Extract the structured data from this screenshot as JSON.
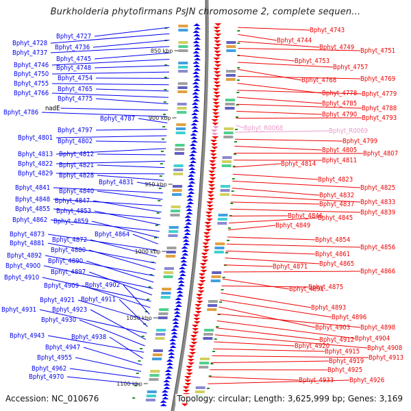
{
  "title": "Burkholderia phytofirmans PsJN chromosome 2, complete sequen...",
  "footer": {
    "accession": "Accession: NC_010676",
    "topology": "Topology: circular; Length: 3,625,999 bp; Genes: 3,169"
  },
  "colors": {
    "forward": "#0000ee",
    "reverse": "#ee0000",
    "rna": "#ee99cc",
    "backbone": "#888888",
    "tick": "#228b22"
  },
  "scale_labels": [
    "850 kbp",
    "900 kbp",
    "950 kbp",
    "1000 kbp",
    "1050 kbp",
    "1100 kbp"
  ],
  "left_labels": [
    "Bphyt_4727",
    "Bphyt_4728",
    "Bphyt_4736",
    "Bphyt_4737",
    "Bphyt_4745",
    "Bphyt_4746",
    "Bphyt_4748",
    "Bphyt_4750",
    "Bphyt_4754",
    "Bphyt_4755",
    "Bphyt_4765",
    "Bphyt_4766",
    "Bphyt_4775",
    "nadE",
    "Bphyt_4786",
    "Bphyt_4787",
    "Bphyt_4797",
    "Bphyt_4801",
    "Bphyt_4802",
    "Bphyt_4813",
    "Bphyt_4812",
    "Bphyt_4822",
    "Bphyt_4821",
    "Bphyt_4829",
    "Bphyt_4828",
    "Bphyt_4831",
    "Bphyt_4841",
    "Bphyt_4840",
    "Bphyt_4848",
    "Bphyt_4847",
    "Bphyt_4855",
    "Bphyt_4853",
    "Bphyt_4862",
    "Bphyt_4859",
    "Bphyt_4864",
    "Bphyt_4873",
    "Bphyt_4872",
    "Bphyt_4881",
    "Bphyt_4880",
    "Bphyt_4892",
    "Bphyt_4890",
    "Bphyt_4900",
    "Bphyt_4897",
    "Bphyt_4910",
    "Bphyt_4909",
    "Bphyt_4902",
    "Bphyt_4921",
    "Bphyt_4911",
    "Bphyt_4931",
    "Bphyt_4923",
    "Bphyt_4930",
    "Bphyt_4943",
    "Bphyt_4938",
    "Bphyt_4947",
    "Bphyt_4955",
    "Bphyt_4962",
    "Bphyt_4970"
  ],
  "right_labels": [
    "Bphyt_4743",
    "Bphyt_4744",
    "Bphyt_4749",
    "Bphyt_4751",
    "Bphyt_4753",
    "Bphyt_4757",
    "Bphyt_4768",
    "Bphyt_4769",
    "Bphyt_4778",
    "Bphyt_4779",
    "Bphyt_4785",
    "Bphyt_4788",
    "Bphyt_4790",
    "Bphyt_4793",
    "Bphyt_R0068",
    "Bphyt_R0069",
    "Bphyt_4799",
    "Bphyt_4805",
    "Bphyt_4807",
    "Bphyt_4811",
    "Bphyt_4814",
    "Bphyt_4823",
    "Bphyt_4825",
    "Bphyt_4832",
    "Bphyt_4833",
    "Bphyt_4837",
    "Bphyt_4839",
    "Bphyt_4846",
    "Bphyt_4845",
    "Bphyt_4849",
    "Bphyt_4854",
    "Bphyt_4856",
    "Bphyt_4861",
    "Bphyt_4865",
    "Bphyt_4871",
    "Bphyt_4866",
    "Bphyt_4891",
    "Bphyt_4875",
    "Bphyt_4893",
    "Bphyt_4896",
    "Bphyt_4903",
    "Bphyt_4898",
    "Bphyt_4904",
    "Bphyt_4912",
    "Bphyt_4908",
    "Bphyt_4920",
    "Bphyt_4915",
    "Bphyt_4913",
    "Bphyt_4919",
    "Bphyt_4925",
    "Bphyt_4933",
    "Bphyt_4926"
  ]
}
